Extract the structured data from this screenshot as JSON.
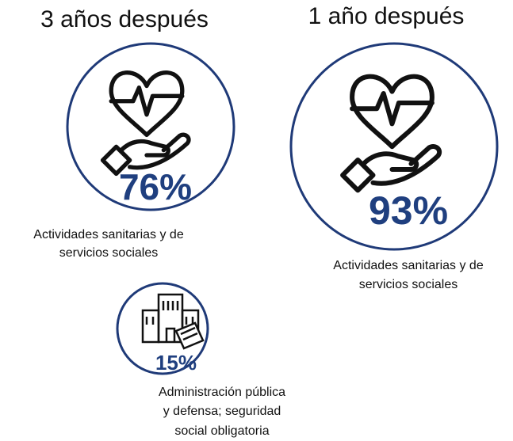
{
  "panels": [
    {
      "title": "3 años después",
      "items": [
        {
          "value": "76%",
          "label": [
            "Actividades sanitarias y de",
            "servicios sociales"
          ]
        },
        {
          "value": "15%",
          "label": [
            "Administración pública",
            "y defensa; seguridad",
            "social obligatoria"
          ]
        }
      ]
    },
    {
      "title": "1 año después",
      "items": [
        {
          "value": "93%",
          "label": [
            "Actividades sanitarias y de",
            "servicios sociales"
          ]
        }
      ]
    }
  ]
}
